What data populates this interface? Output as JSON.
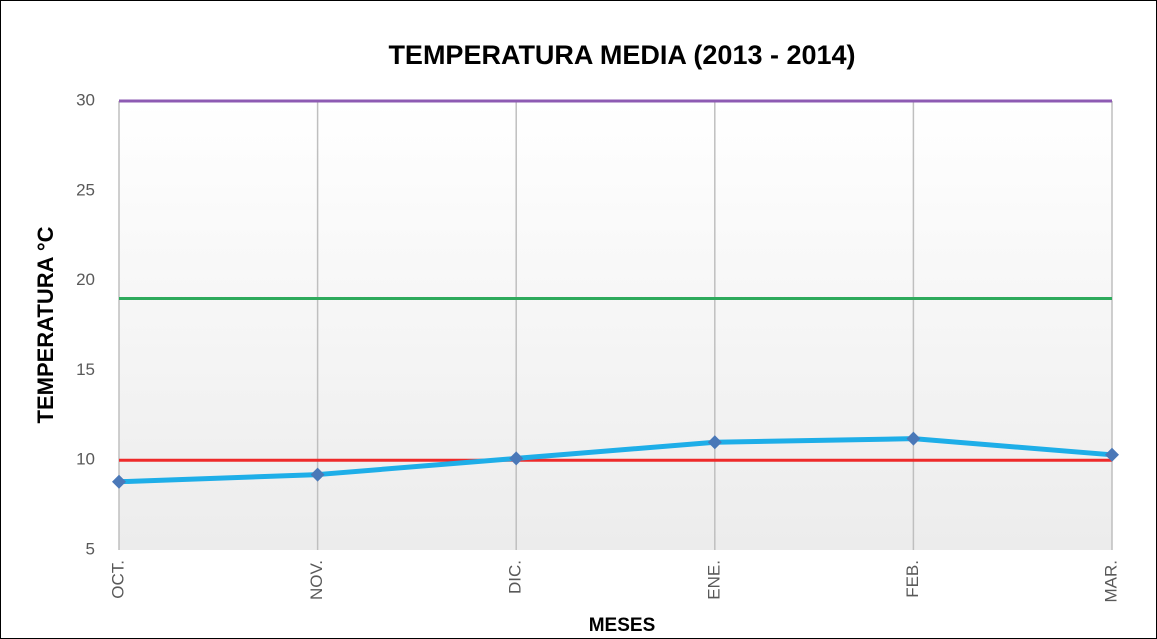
{
  "chart_data": {
    "type": "line",
    "title": "TEMPERATURA MEDIA (2013 - 2014)",
    "x_label": "MESES",
    "y_label": "TEMPERATURA °C",
    "categories": [
      "OCT.",
      "NOV.",
      "DIC.",
      "ENE.",
      "FEB.",
      "MAR."
    ],
    "series": [
      {
        "color": "#1eaee8",
        "values": [
          8.8,
          9.2,
          10.1,
          11.0,
          11.2,
          10.3
        ],
        "marker": "diamond",
        "marker_color": "#4a78b8"
      },
      {
        "color": "#8e5bb3",
        "values": [
          30,
          30,
          30,
          30,
          30,
          30
        ]
      },
      {
        "color": "#2eaa5c",
        "values": [
          19,
          19,
          19,
          19,
          19,
          19
        ]
      },
      {
        "color": "#ee2a2a",
        "values": [
          10,
          10,
          10,
          10,
          10,
          10
        ]
      }
    ],
    "ylim": [
      5,
      30
    ],
    "yticks": [
      5,
      10,
      15,
      20,
      25,
      30
    ],
    "grid": "x"
  }
}
